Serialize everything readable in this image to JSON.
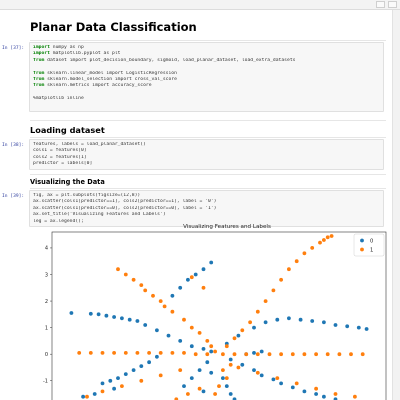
{
  "notebook": {
    "title": "Planar Data Classification",
    "sections": {
      "loading": "Loading dataset",
      "visualizing": "Visualizing the Data"
    },
    "cells": [
      {
        "prompt": "In [37]:",
        "lines": [
          {
            "kw": "import",
            "text": " numpy as np"
          },
          {
            "kw": "import",
            "text": " matplotlib.pyplot as plt"
          },
          {
            "kw": "from",
            "text": " dataset import plot_decision_boundary, sigmoid, load_planar_dataset, load_extra_datasets"
          },
          {
            "kw": "",
            "text": ""
          },
          {
            "kw": "from",
            "text": " sklearn.linear_model import LogisticRegression"
          },
          {
            "kw": "from",
            "text": " sklearn.model_selection import cross_val_score"
          },
          {
            "kw": "from",
            "text": " sklearn.metrics import accuracy_score"
          },
          {
            "kw": "",
            "text": ""
          },
          {
            "kw": "",
            "text": "%matplotlib inline"
          }
        ]
      },
      {
        "prompt": "In [38]:",
        "lines": [
          {
            "kw": "",
            "text": "features, labels = load_planar_dataset()"
          },
          {
            "kw": "",
            "text": "cols1 = features[0]"
          },
          {
            "kw": "",
            "text": "cols2 = features[1]"
          },
          {
            "kw": "",
            "text": "predictor = labels[0]"
          }
        ]
      },
      {
        "prompt": "In [39]:",
        "lines": [
          {
            "kw": "",
            "text": "fig, ax = plt.subplots(figsize=(12,8))"
          },
          {
            "kw": "",
            "text": "ax.scatter(cols1[predictor==1], cols2[predictor==1], label = '0')"
          },
          {
            "kw": "",
            "text": "ax.scatter(cols1[predictor==0], cols2[predictor==0], label = '1')"
          },
          {
            "kw": "",
            "text": "ax.set_title('Visualizing Features and Labels')"
          },
          {
            "kw": "",
            "text": "leg = ax.legend();"
          }
        ]
      }
    ]
  },
  "chart_data": {
    "type": "scatter",
    "title": "Visualizing Features and Labels",
    "xlabel": "",
    "ylabel": "",
    "ylim": [
      -1.8,
      4.6
    ],
    "xlim": [
      -4.3,
      4.3
    ],
    "y_ticks": [
      4,
      3,
      2,
      1,
      0,
      -1
    ],
    "legend": {
      "placement": "top-right",
      "entries": [
        "0",
        "1"
      ]
    },
    "colors": {
      "series_0": "#1f77b4",
      "series_1": "#ff7f0e"
    },
    "series": [
      {
        "name": "0",
        "x": [
          -3.8,
          -3.3,
          -3.1,
          -2.9,
          -2.7,
          -2.5,
          -2.3,
          -2.1,
          -1.9,
          -1.6,
          -1.3,
          -1.0,
          -0.7,
          -0.4,
          -0.2,
          0.2,
          0.5,
          0.9,
          1.2,
          1.5,
          1.8,
          2.1,
          2.4,
          2.7,
          3.0,
          3.3,
          3.6,
          3.8,
          -1.2,
          -1.0,
          -0.8,
          -0.6,
          -0.4,
          -0.2,
          -1.6,
          -1.8,
          -2.0,
          -2.2,
          -2.4,
          -2.6,
          -2.8,
          -3.0,
          0.3,
          0.6,
          0.9,
          1.1,
          1.4,
          1.6,
          1.9,
          2.2,
          2.5,
          2.7,
          3.0,
          -0.3,
          -0.5,
          -0.7,
          -0.9,
          0.1,
          0.2,
          0.3,
          0.4,
          0.5,
          -0.2,
          -0.4,
          0.7,
          0.9,
          1.1,
          -2.7,
          -3.2,
          -3.5
        ],
        "y": [
          1.55,
          1.52,
          1.5,
          1.45,
          1.4,
          1.35,
          1.3,
          1.25,
          1.1,
          0.9,
          0.7,
          0.5,
          0.3,
          0.2,
          0.1,
          0.4,
          0.7,
          1.0,
          1.2,
          1.3,
          1.35,
          1.3,
          1.25,
          1.2,
          1.1,
          1.05,
          1.0,
          0.95,
          2.2,
          2.5,
          2.8,
          3.0,
          3.2,
          3.45,
          -0.1,
          -0.3,
          -0.45,
          -0.6,
          -0.75,
          -0.9,
          -1.0,
          -1.1,
          -0.2,
          -0.4,
          -0.6,
          -0.8,
          -0.95,
          -1.1,
          -1.25,
          -1.4,
          -1.5,
          -1.6,
          -1.7,
          -0.3,
          -0.6,
          -0.9,
          -1.2,
          -0.9,
          -1.2,
          -1.5,
          -1.7,
          -1.8,
          -0.7,
          -1.4,
          0.0,
          0.05,
          0.1,
          -1.3,
          -1.5,
          -1.6
        ]
      },
      {
        "name": "1",
        "x": [
          -2.6,
          -2.4,
          -2.2,
          -2.0,
          -1.9,
          -1.7,
          -1.5,
          -1.4,
          -1.2,
          -0.9,
          -0.7,
          -0.5,
          -0.3,
          -0.2,
          -0.1,
          0.2,
          0.4,
          0.6,
          0.8,
          1.0,
          1.2,
          1.4,
          1.6,
          1.8,
          2.0,
          2.2,
          2.4,
          2.6,
          2.7,
          2.8,
          2.9,
          -3.6,
          -3.3,
          -3.0,
          -2.7,
          -2.4,
          -2.1,
          -1.8,
          -1.5,
          -1.2,
          -0.9,
          -0.6,
          -0.3,
          0.1,
          0.4,
          0.7,
          1.0,
          1.3,
          1.6,
          1.9,
          2.2,
          2.5,
          2.8,
          3.1,
          3.4,
          3.7,
          -1.0,
          -1.5,
          -2.0,
          -2.5,
          -3.0,
          -3.4,
          0.5,
          1.0,
          1.5,
          2.0,
          2.5,
          3.0,
          3.5,
          -0.5,
          -0.8,
          -1.1,
          -0.4,
          -0.7,
          0.3,
          0.1,
          0.2,
          0.0,
          -0.1
        ],
        "y": [
          3.2,
          3.0,
          2.8,
          2.6,
          2.4,
          2.2,
          2.0,
          1.8,
          1.6,
          1.3,
          1.0,
          0.8,
          0.5,
          0.3,
          0.1,
          0.3,
          0.6,
          0.9,
          1.2,
          1.6,
          2.0,
          2.4,
          2.8,
          3.2,
          3.5,
          3.8,
          4.0,
          4.2,
          4.3,
          4.4,
          4.45,
          0.05,
          0.05,
          0.05,
          0.05,
          0.05,
          0.05,
          0.05,
          0.05,
          0.05,
          0.05,
          0.0,
          0.0,
          0.0,
          0.0,
          0.0,
          0.0,
          0.0,
          0.0,
          0.0,
          0.0,
          0.0,
          0.0,
          0.0,
          0.0,
          0.0,
          -0.6,
          -0.8,
          -1.0,
          -1.2,
          -1.4,
          -1.6,
          -0.5,
          -0.7,
          -0.9,
          -1.1,
          -1.3,
          -1.5,
          -1.6,
          -1.3,
          -1.5,
          -1.7,
          2.5,
          2.9,
          -0.4,
          -0.6,
          -0.9,
          -1.2,
          -1.5
        ]
      }
    ]
  }
}
